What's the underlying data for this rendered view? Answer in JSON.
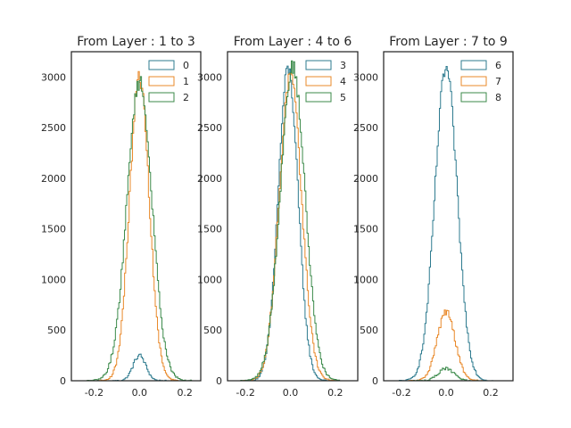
{
  "chart_data": [
    {
      "type": "histogram",
      "title": "From Layer : 1 to 3",
      "xlim": [
        -0.3,
        0.27
      ],
      "ylim": [
        0,
        3250
      ],
      "xticks": [
        "-0.2",
        "0.0",
        "0.2"
      ],
      "yticks": [
        "0",
        "500",
        "1000",
        "1500",
        "2000",
        "2500",
        "3000"
      ],
      "legend_position": "top-right",
      "series": [
        {
          "name": "0",
          "color": "#2e7b8f",
          "mean": 0.0,
          "sd": 0.028,
          "peak": 250
        },
        {
          "name": "1",
          "color": "#e9892a",
          "mean": 0.0,
          "sd": 0.043,
          "peak": 3000
        },
        {
          "name": "2",
          "color": "#3b8a4a",
          "mean": 0.0,
          "sd": 0.055,
          "peak": 2950
        }
      ]
    },
    {
      "type": "histogram",
      "title": "From Layer : 4 to 6",
      "xlim": [
        -0.28,
        0.3
      ],
      "ylim": [
        0,
        3250
      ],
      "xticks": [
        "-0.2",
        "0.0",
        "0.2"
      ],
      "yticks": [
        "0",
        "500",
        "1000",
        "1500",
        "2000",
        "2500",
        "3000"
      ],
      "legend_position": "top-right",
      "series": [
        {
          "name": "3",
          "color": "#2e7b8f",
          "mean": -0.01,
          "sd": 0.044,
          "peak": 3080
        },
        {
          "name": "4",
          "color": "#e9892a",
          "mean": 0.0,
          "sd": 0.05,
          "peak": 3000
        },
        {
          "name": "5",
          "color": "#3b8a4a",
          "mean": 0.01,
          "sd": 0.055,
          "peak": 3100
        }
      ]
    },
    {
      "type": "histogram",
      "title": "From Layer : 7 to 9",
      "xlim": [
        -0.28,
        0.3
      ],
      "ylim": [
        0,
        3250
      ],
      "xticks": [
        "-0.2",
        "0.0",
        "0.2"
      ],
      "yticks": [
        "0",
        "500",
        "1000",
        "1500",
        "2000",
        "2500",
        "3000"
      ],
      "legend_position": "top-right",
      "series": [
        {
          "name": "6",
          "color": "#2e7b8f",
          "mean": 0.0,
          "sd": 0.05,
          "peak": 3080
        },
        {
          "name": "7",
          "color": "#e9892a",
          "mean": 0.0,
          "sd": 0.04,
          "peak": 680
        },
        {
          "name": "8",
          "color": "#3b8a4a",
          "mean": 0.0,
          "sd": 0.035,
          "peak": 120
        }
      ]
    }
  ]
}
